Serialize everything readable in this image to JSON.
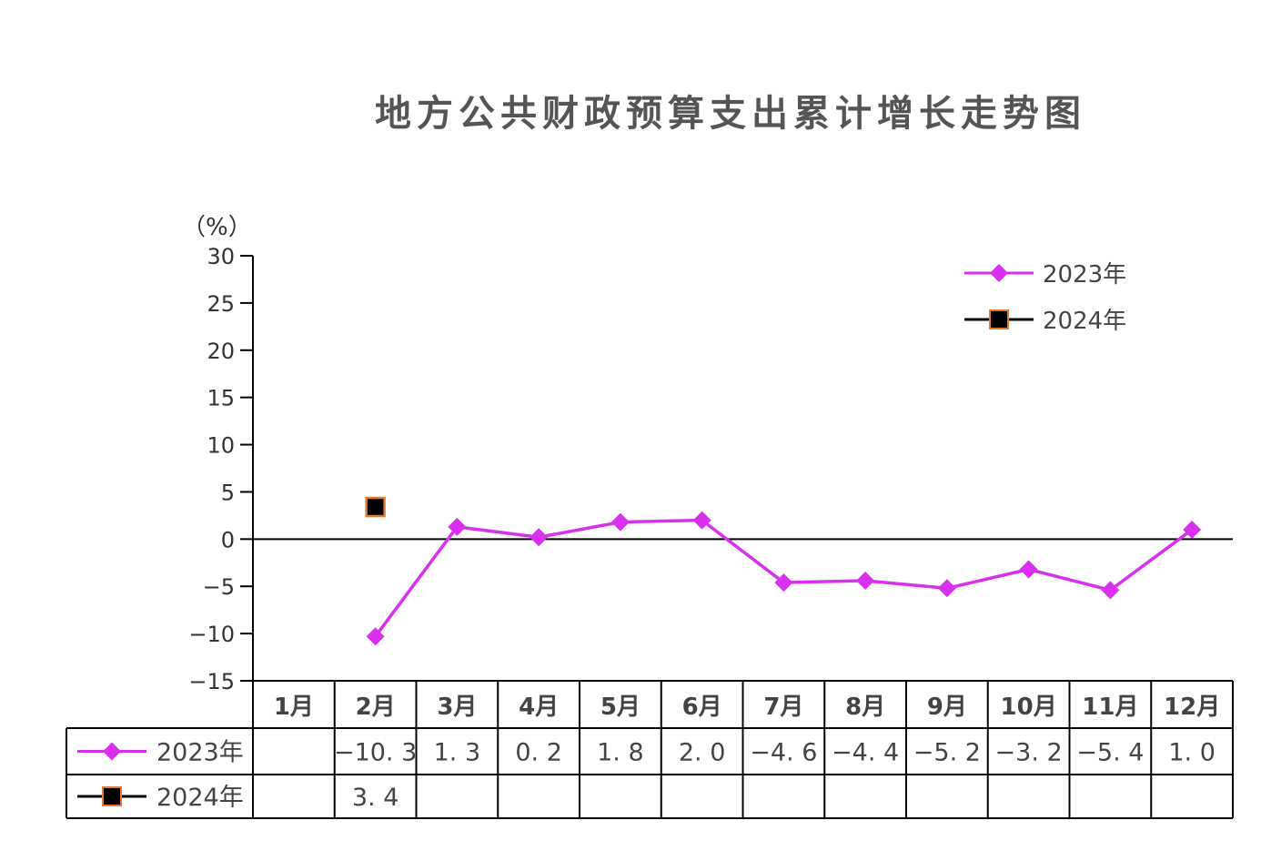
{
  "chart_data": {
    "type": "line",
    "title": "地方公共财政预算支出累计增长走势图",
    "unit": "（%）",
    "ylim": [
      -15,
      30
    ],
    "yticks": [
      30,
      25,
      20,
      15,
      10,
      5,
      0,
      -5,
      -10,
      -15
    ],
    "ytick_labels": [
      "30",
      "25",
      "20",
      "15",
      "10",
      "5",
      "0",
      "−5",
      "−10",
      "−15"
    ],
    "categories": [
      "1月",
      "2月",
      "3月",
      "4月",
      "5月",
      "6月",
      "7月",
      "8月",
      "9月",
      "10月",
      "11月",
      "12月"
    ],
    "legend_position": "top-right",
    "series": [
      {
        "name": "2023年",
        "color": "#d930ef",
        "marker": "diamond",
        "values": [
          null,
          -10.3,
          1.3,
          0.2,
          1.8,
          2.0,
          -4.6,
          -4.4,
          -5.2,
          -3.2,
          -5.4,
          1.0
        ],
        "table_values": [
          "",
          "−10. 3",
          "1. 3",
          "0. 2",
          "1. 8",
          "2. 0",
          "−4. 6",
          "−4. 4",
          "−5. 2",
          "−3. 2",
          "−5. 4",
          "1. 0"
        ]
      },
      {
        "name": "2024年",
        "color": "#000000",
        "marker_border": "#e07a30",
        "marker": "square",
        "values": [
          null,
          3.4,
          null,
          null,
          null,
          null,
          null,
          null,
          null,
          null,
          null,
          null
        ],
        "table_values": [
          "",
          "3. 4",
          "",
          "",
          "",
          "",
          "",
          "",
          "",
          "",
          "",
          ""
        ]
      }
    ]
  }
}
